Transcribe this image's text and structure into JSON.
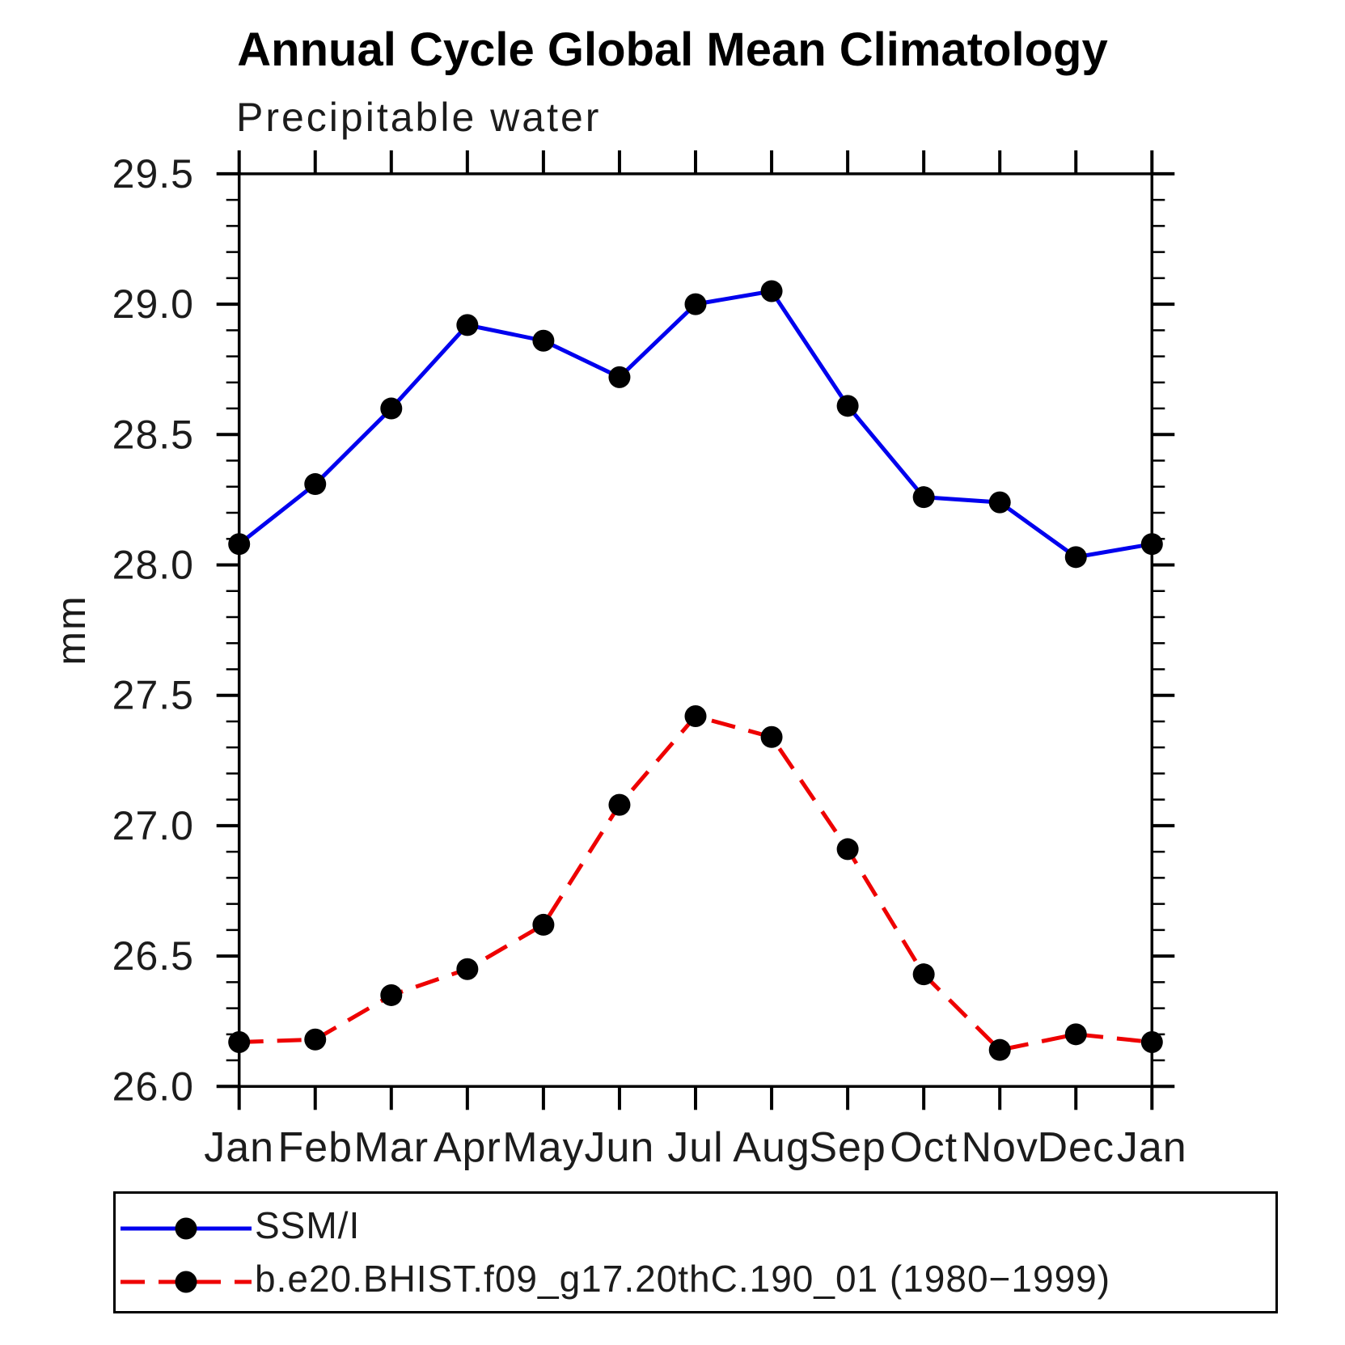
{
  "title": "Annual Cycle Global Mean Climatology",
  "subtitle": "Precipitable water",
  "y_axis_label": "mm",
  "legend": {
    "items": [
      {
        "label": "SSM/I",
        "color": "#0000ee",
        "line_style": "solid"
      },
      {
        "label": "b.e20.BHIST.f09_g17.20thC.190_01 (1980−1999)",
        "color": "#ee0000",
        "line_style": "dashed"
      }
    ]
  },
  "chart_data": {
    "type": "line",
    "title": "Annual Cycle Global Mean Climatology",
    "subtitle": "Precipitable water",
    "xlabel": "",
    "ylabel": "mm",
    "ylim": [
      26.0,
      29.5
    ],
    "y_major_step": 0.5,
    "y_minor_step": 0.1,
    "grid": false,
    "legend_position": "bottom",
    "x_tick_labels": [
      "Jan",
      "Feb",
      "Mar",
      "Apr",
      "May",
      "Jun",
      "Jul",
      "Aug",
      "Sep",
      "Oct",
      "Nov",
      "Dec",
      "Jan"
    ],
    "y_tick_labels": [
      "26.0",
      "26.5",
      "27.0",
      "27.5",
      "28.0",
      "28.5",
      "29.0",
      "29.5"
    ],
    "series": [
      {
        "name": "SSM/I",
        "color": "#0000ee",
        "line_style": "solid",
        "marker": "circle",
        "marker_color": "#000000",
        "values": [
          28.08,
          28.31,
          28.6,
          28.92,
          28.86,
          28.72,
          29.0,
          29.05,
          28.61,
          28.26,
          28.24,
          28.03,
          28.08
        ]
      },
      {
        "name": "b.e20.BHIST.f09_g17.20thC.190_01 (1980−1999)",
        "color": "#ee0000",
        "line_style": "dashed",
        "marker": "circle",
        "marker_color": "#000000",
        "values": [
          26.17,
          26.18,
          26.35,
          26.45,
          26.62,
          27.08,
          27.42,
          27.34,
          26.91,
          26.43,
          26.14,
          26.2,
          26.17
        ]
      }
    ]
  }
}
